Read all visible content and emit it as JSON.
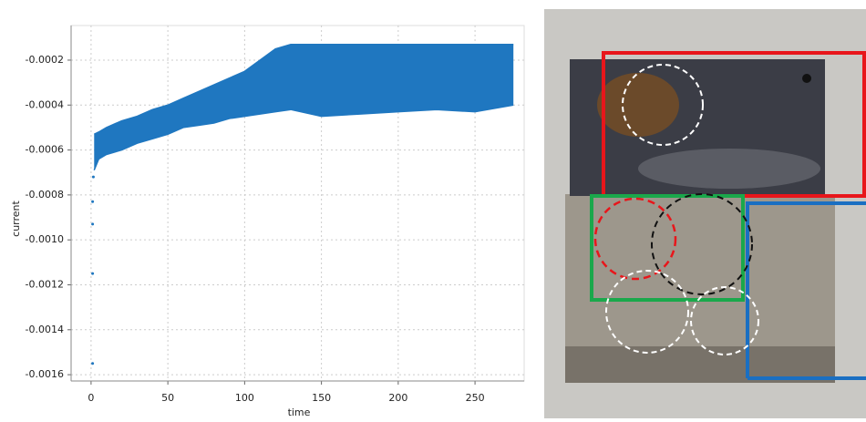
{
  "chart_data": {
    "type": "band",
    "x_label": "time",
    "y_label": "current",
    "x": [
      2,
      5,
      10,
      20,
      30,
      40,
      50,
      60,
      70,
      80,
      90,
      100,
      110,
      120,
      130,
      150,
      175,
      200,
      225,
      250,
      275
    ],
    "series": [
      {
        "color": "#1f77c0",
        "values": [
          -0.00053,
          -0.00052,
          -0.0005,
          -0.00047,
          -0.00045,
          -0.00042,
          -0.0004,
          -0.00037,
          -0.00034,
          -0.00031,
          -0.00028,
          -0.00025,
          -0.0002,
          -0.00015,
          -0.00013,
          -0.00013,
          -0.00013,
          -0.00013,
          -0.00013,
          -0.00013,
          -0.00013
        ]
      },
      {
        "color": "#1f77c0",
        "values": [
          -0.00069,
          -0.00064,
          -0.00062,
          -0.0006,
          -0.00057,
          -0.00055,
          -0.00053,
          -0.0005,
          -0.00049,
          -0.00048,
          -0.00046,
          -0.00045,
          -0.00044,
          -0.00043,
          -0.00042,
          -0.00045,
          -0.00044,
          -0.00043,
          -0.00042,
          -0.00043,
          -0.0004
        ]
      }
    ],
    "points": {
      "color": "#1f77c0",
      "x": [
        1,
        1,
        1,
        1,
        1.5
      ],
      "values": [
        -0.00083,
        -0.00093,
        -0.00115,
        -0.00155,
        -0.00072
      ]
    },
    "xlim": [
      -13,
      282
    ],
    "ylim": [
      -0.001628,
      -4.6e-05
    ],
    "xticks": [
      0,
      50,
      100,
      150,
      200,
      250
    ],
    "yticks": [
      -0.0002,
      -0.0004,
      -0.0006,
      -0.0008,
      {
        "value": -0.001,
        "label": "-0.0010"
      },
      -0.0012,
      -0.0014,
      -0.0016
    ],
    "grid": true
  }
}
